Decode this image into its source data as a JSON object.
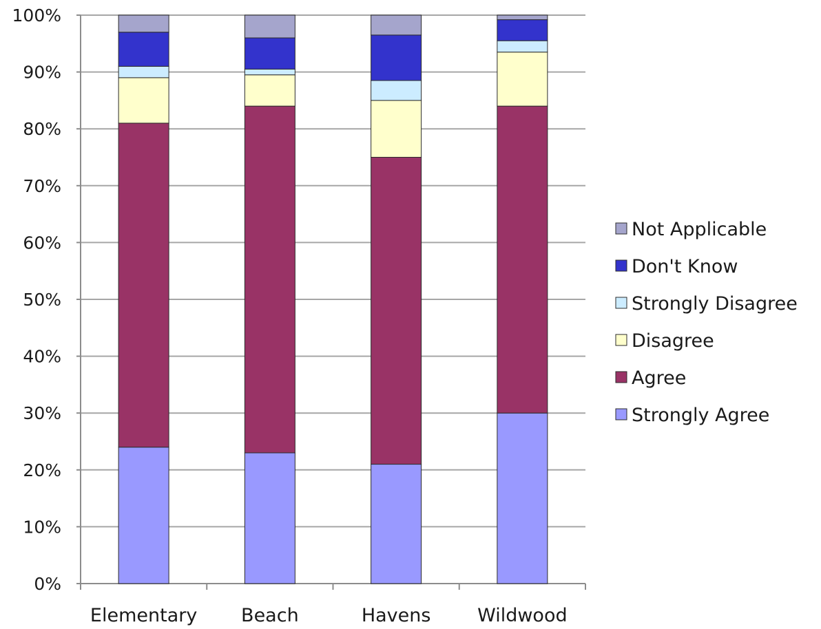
{
  "chart_data": {
    "type": "bar",
    "stacked": true,
    "normalized": true,
    "categories": [
      "Elementary",
      "Beach",
      "Havens",
      "Wildwood"
    ],
    "series": [
      {
        "name": "Strongly Agree",
        "color": "#9999ff",
        "values": [
          24,
          23,
          21,
          30
        ]
      },
      {
        "name": "Agree",
        "color": "#993366",
        "values": [
          57,
          61,
          54,
          54
        ]
      },
      {
        "name": "Disagree",
        "color": "#ffffcc",
        "values": [
          8,
          5.5,
          10,
          9.5
        ]
      },
      {
        "name": "Strongly Disagree",
        "color": "#ccecff",
        "values": [
          2,
          1,
          3.5,
          2
        ]
      },
      {
        "name": "Don't Know",
        "color": "#3333cc",
        "values": [
          6,
          5.5,
          8,
          3.7
        ]
      },
      {
        "name": "Not Applicable",
        "color": "#a5a5cc",
        "values": [
          3,
          4,
          3.5,
          0.8
        ]
      }
    ],
    "yticks": [
      "0%",
      "10%",
      "20%",
      "30%",
      "40%",
      "50%",
      "60%",
      "70%",
      "80%",
      "90%",
      "100%"
    ],
    "ylim": [
      0,
      100
    ],
    "grid": true,
    "legend_position": "right",
    "legend_order": [
      "Not Applicable",
      "Don't Know",
      "Strongly Disagree",
      "Disagree",
      "Agree",
      "Strongly Agree"
    ],
    "gridline_color": "#a6a6a6",
    "axis_color": "#8c8c8c"
  }
}
